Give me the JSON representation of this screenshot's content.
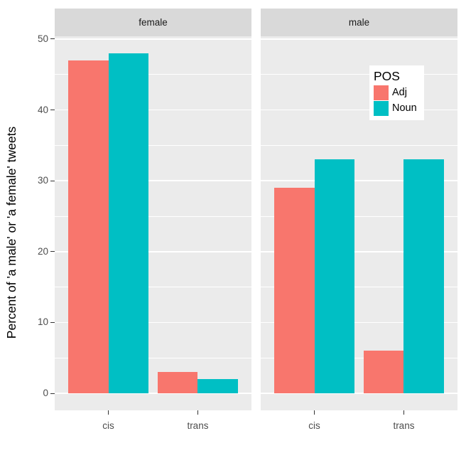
{
  "chart_data": {
    "type": "bar",
    "title": "",
    "xlabel": "",
    "ylabel": "Percent of 'a male' or 'a female' tweets",
    "categories": [
      "cis",
      "trans"
    ],
    "facets": [
      {
        "label": "female",
        "series": [
          {
            "name": "Adj",
            "values": [
              47,
              3
            ]
          },
          {
            "name": "Noun",
            "values": [
              48,
              2
            ]
          }
        ]
      },
      {
        "label": "male",
        "series": [
          {
            "name": "Adj",
            "values": [
              29,
              6
            ]
          },
          {
            "name": "Noun",
            "values": [
              33,
              33
            ]
          }
        ]
      }
    ],
    "ylim": [
      -2.4,
      50.4
    ],
    "yticks": [
      0,
      10,
      20,
      30,
      40,
      50
    ],
    "yticks_minor": [
      5,
      15,
      25,
      35,
      45
    ],
    "grid": "on",
    "legend": {
      "title": "POS",
      "position": "inside-top-right-of-male-panel",
      "entries": [
        {
          "label": "Adj",
          "color": "#F8766D"
        },
        {
          "label": "Noun",
          "color": "#00BFC4"
        }
      ]
    },
    "colors": {
      "panel_background": "#EBEBEB",
      "strip_background": "#D9D9D9",
      "gridline": "#FFFFFF",
      "tick_text": "#4D4D4D",
      "axis_title_text": "#000000",
      "adj_bar": "#F8766D",
      "noun_bar": "#00BFC4"
    }
  }
}
